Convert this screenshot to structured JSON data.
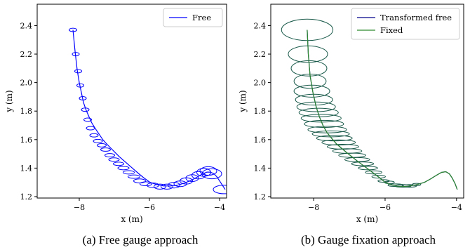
{
  "chart_data": [
    {
      "type": "line",
      "caption": "(a) Free gauge approach",
      "xlabel": "x (m)",
      "ylabel": "y (m)",
      "xlim": [
        -9.2,
        -3.8
      ],
      "ylim": [
        1.19,
        2.55
      ],
      "xticks": [
        -8,
        -6,
        -4
      ],
      "xtick_labels": [
        "−8",
        "−6",
        "−4"
      ],
      "yticks": [
        1.2,
        1.4,
        1.6,
        1.8,
        2.0,
        2.2,
        2.4
      ],
      "ytick_labels": [
        "1.2",
        "1.4",
        "1.6",
        "1.8",
        "2.0",
        "2.2",
        "2.4"
      ],
      "grid": false,
      "legend": "top-right",
      "series": [
        {
          "name": "Free",
          "color": "#0000ff",
          "x": [
            -8.18,
            -8.12,
            -8.06,
            -8.0,
            -7.94,
            -7.88,
            -7.81,
            -7.74,
            -7.65,
            -7.55,
            -7.44,
            -7.33,
            -7.22,
            -7.1,
            -6.98,
            -6.86,
            -6.72,
            -6.58,
            -6.44,
            -6.3,
            -6.15,
            -5.98,
            -5.8,
            -5.6,
            -5.4,
            -5.2,
            -5.0,
            -4.8,
            -4.62,
            -4.48,
            -4.36,
            -4.26,
            -4.16,
            -4.08,
            -4.0,
            -3.92,
            -3.84
          ],
          "y": [
            2.37,
            2.22,
            2.09,
            2.0,
            1.93,
            1.86,
            1.81,
            1.77,
            1.72,
            1.68,
            1.64,
            1.6,
            1.57,
            1.54,
            1.51,
            1.48,
            1.45,
            1.42,
            1.39,
            1.36,
            1.33,
            1.3,
            1.285,
            1.275,
            1.275,
            1.28,
            1.295,
            1.315,
            1.34,
            1.36,
            1.372,
            1.372,
            1.36,
            1.34,
            1.31,
            1.28,
            1.25
          ]
        }
      ],
      "ellipses": {
        "color": "#0000ff",
        "x": [
          -8.18,
          -8.1,
          -8.03,
          -7.97,
          -7.9,
          -7.83,
          -7.76,
          -7.68,
          -7.58,
          -7.47,
          -7.36,
          -7.25,
          -7.13,
          -7.01,
          -6.88,
          -6.74,
          -6.59,
          -6.44,
          -6.28,
          -6.1,
          -5.9,
          -5.7,
          -5.5,
          -5.3,
          -5.12,
          -4.95,
          -4.78,
          -4.6,
          -4.45,
          -4.32,
          -4.22,
          -3.88
        ],
        "y": [
          2.37,
          2.2,
          2.08,
          1.98,
          1.89,
          1.81,
          1.74,
          1.68,
          1.63,
          1.59,
          1.56,
          1.53,
          1.49,
          1.46,
          1.43,
          1.4,
          1.37,
          1.34,
          1.31,
          1.29,
          1.28,
          1.27,
          1.27,
          1.28,
          1.29,
          1.31,
          1.33,
          1.35,
          1.37,
          1.38,
          1.36,
          1.25
        ],
        "rx": [
          0.11,
          0.1,
          0.1,
          0.1,
          0.1,
          0.11,
          0.11,
          0.12,
          0.12,
          0.13,
          0.13,
          0.14,
          0.14,
          0.15,
          0.15,
          0.16,
          0.16,
          0.17,
          0.17,
          0.17,
          0.17,
          0.17,
          0.17,
          0.17,
          0.18,
          0.18,
          0.18,
          0.19,
          0.2,
          0.24,
          0.28,
          0.3
        ],
        "ry": [
          0.012,
          0.012,
          0.012,
          0.012,
          0.012,
          0.012,
          0.012,
          0.012,
          0.012,
          0.012,
          0.012,
          0.012,
          0.012,
          0.012,
          0.012,
          0.012,
          0.012,
          0.012,
          0.014,
          0.014,
          0.016,
          0.018,
          0.018,
          0.02,
          0.02,
          0.022,
          0.024,
          0.026,
          0.028,
          0.03,
          0.035,
          0.03
        ]
      }
    },
    {
      "type": "line",
      "caption": "(b) Gauge fixation approach",
      "xlabel": "x (m)",
      "ylabel": "y (m)",
      "xlim": [
        -9.2,
        -3.8
      ],
      "ylim": [
        1.19,
        2.55
      ],
      "xticks": [
        -8,
        -6,
        -4
      ],
      "xtick_labels": [
        "−8",
        "−6",
        "−4"
      ],
      "yticks": [
        1.2,
        1.4,
        1.6,
        1.8,
        2.0,
        2.2,
        2.4
      ],
      "ytick_labels": [
        "1.2",
        "1.4",
        "1.6",
        "1.8",
        "2.0",
        "2.2",
        "2.4"
      ],
      "grid": false,
      "legend": "top-right",
      "series": [
        {
          "name": "Transformed free",
          "color": "#00008b",
          "x": [
            -8.18,
            -8.15,
            -8.1,
            -8.02,
            -7.93,
            -7.84,
            -7.74,
            -7.63,
            -7.5,
            -7.36,
            -7.22,
            -7.08,
            -6.93,
            -6.78,
            -6.62,
            -6.46,
            -6.3,
            -6.14,
            -6.0,
            -5.86,
            -5.7,
            -5.5,
            -5.3,
            -5.1,
            -4.9,
            -4.72,
            -4.56,
            -4.42,
            -4.3,
            -4.2,
            -4.12,
            -4.04,
            -3.98
          ],
          "y": [
            2.37,
            2.2,
            2.05,
            1.93,
            1.83,
            1.76,
            1.7,
            1.65,
            1.61,
            1.57,
            1.54,
            1.51,
            1.48,
            1.45,
            1.42,
            1.39,
            1.36,
            1.33,
            1.3,
            1.285,
            1.275,
            1.27,
            1.275,
            1.285,
            1.3,
            1.325,
            1.35,
            1.37,
            1.375,
            1.36,
            1.33,
            1.29,
            1.25
          ]
        },
        {
          "name": "Fixed",
          "color": "#2e8b2e",
          "x": [
            -8.18,
            -8.15,
            -8.1,
            -8.02,
            -7.93,
            -7.84,
            -7.74,
            -7.63,
            -7.5,
            -7.36,
            -7.22,
            -7.08,
            -6.93,
            -6.78,
            -6.62,
            -6.46,
            -6.3,
            -6.14,
            -6.0,
            -5.86,
            -5.7,
            -5.5,
            -5.3,
            -5.1,
            -4.9,
            -4.72,
            -4.56,
            -4.42,
            -4.3,
            -4.2,
            -4.12,
            -4.04,
            -3.98
          ],
          "y": [
            2.37,
            2.2,
            2.05,
            1.93,
            1.83,
            1.76,
            1.7,
            1.65,
            1.61,
            1.57,
            1.54,
            1.51,
            1.48,
            1.45,
            1.42,
            1.39,
            1.36,
            1.33,
            1.3,
            1.285,
            1.275,
            1.27,
            1.275,
            1.285,
            1.3,
            1.325,
            1.35,
            1.37,
            1.375,
            1.36,
            1.33,
            1.29,
            1.25
          ]
        }
      ],
      "ellipses": {
        "color": "#1a5a4a",
        "x": [
          -8.18,
          -8.16,
          -8.13,
          -8.1,
          -8.05,
          -7.99,
          -7.93,
          -7.86,
          -7.79,
          -7.71,
          -7.62,
          -7.52,
          -7.42,
          -7.3,
          -7.18,
          -7.06,
          -6.92,
          -6.78,
          -6.63,
          -6.48,
          -6.32,
          -6.18,
          -6.04,
          -5.88,
          -5.7,
          -5.5,
          -5.32,
          -5.12
        ],
        "y": [
          2.37,
          2.2,
          2.1,
          2.01,
          1.94,
          1.88,
          1.83,
          1.79,
          1.75,
          1.71,
          1.67,
          1.64,
          1.61,
          1.58,
          1.55,
          1.52,
          1.49,
          1.46,
          1.43,
          1.4,
          1.37,
          1.34,
          1.31,
          1.3,
          1.28,
          1.275,
          1.275,
          1.285
        ],
        "rx": [
          0.72,
          0.55,
          0.5,
          0.45,
          0.5,
          0.52,
          0.54,
          0.55,
          0.56,
          0.55,
          0.54,
          0.52,
          0.5,
          0.47,
          0.44,
          0.41,
          0.38,
          0.35,
          0.31,
          0.27,
          0.23,
          0.19,
          0.16,
          0.14,
          0.22,
          0.23,
          0.2,
          0.12
        ],
        "ry": [
          0.075,
          0.058,
          0.054,
          0.05,
          0.042,
          0.038,
          0.034,
          0.03,
          0.027,
          0.025,
          0.023,
          0.021,
          0.019,
          0.018,
          0.017,
          0.016,
          0.015,
          0.014,
          0.013,
          0.012,
          0.011,
          0.01,
          0.009,
          0.009,
          0.009,
          0.009,
          0.009,
          0.008
        ]
      }
    }
  ]
}
